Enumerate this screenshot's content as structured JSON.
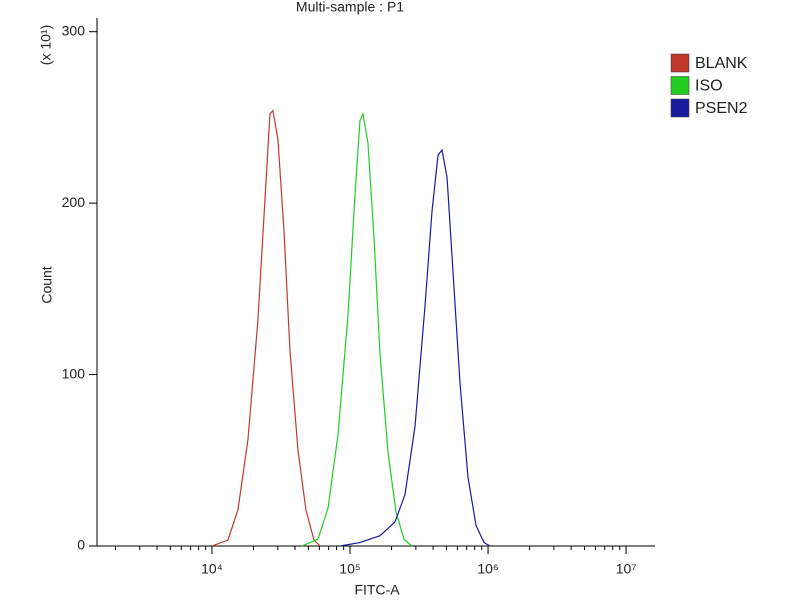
{
  "chart_data": {
    "type": "line",
    "title": "Multi-sample : P1",
    "x_label": "FITC-A",
    "y_label": "Count",
    "y_multiplier": "(x 10¹)",
    "x_scale": "log",
    "xlim": [
      1470,
      16200000
    ],
    "xticks": [
      {
        "value": 10000,
        "label": "10⁴"
      },
      {
        "value": 100000,
        "label": "10⁵"
      },
      {
        "value": 1000000,
        "label": "10⁶"
      },
      {
        "value": 10000000,
        "label": "10⁷"
      }
    ],
    "ylim": [
      0,
      308
    ],
    "yticks": [
      0,
      100,
      200,
      300
    ],
    "legend": "right",
    "series": [
      {
        "name": "BLANK",
        "color": "#c0392b",
        "x": [
          10000,
          13060,
          15420,
          18230,
          21540,
          24210,
          26310,
          27660,
          30080,
          33240,
          36740,
          41980,
          47970,
          54820,
          60660
        ],
        "values": [
          0,
          3.5,
          21,
          62,
          132,
          202,
          252,
          254,
          237,
          184,
          114,
          56,
          21,
          3.5,
          0
        ]
      },
      {
        "name": "ISO",
        "color": "#22cc22",
        "x": [
          44870,
          58610,
          69300,
          81900,
          96800,
          108700,
          118100,
          124100,
          135000,
          149200,
          164900,
          188400,
          215300,
          246000,
          281200
        ],
        "values": [
          0,
          4,
          22,
          65,
          135,
          205,
          248,
          252,
          235,
          180,
          112,
          55,
          20,
          4,
          0
        ]
      },
      {
        "name": "PSEN2",
        "color": "#1a1aa0",
        "x": [
          84800,
          118100,
          164900,
          211700,
          250300,
          296000,
          349400,
          392500,
          434300,
          464100,
          504800,
          557500,
          626500,
          716100,
          818300,
          935700,
          1033000
        ],
        "values": [
          0,
          2,
          6,
          14,
          30,
          70,
          140,
          195,
          228,
          231,
          215,
          160,
          95,
          40,
          12,
          2,
          0
        ]
      }
    ]
  }
}
